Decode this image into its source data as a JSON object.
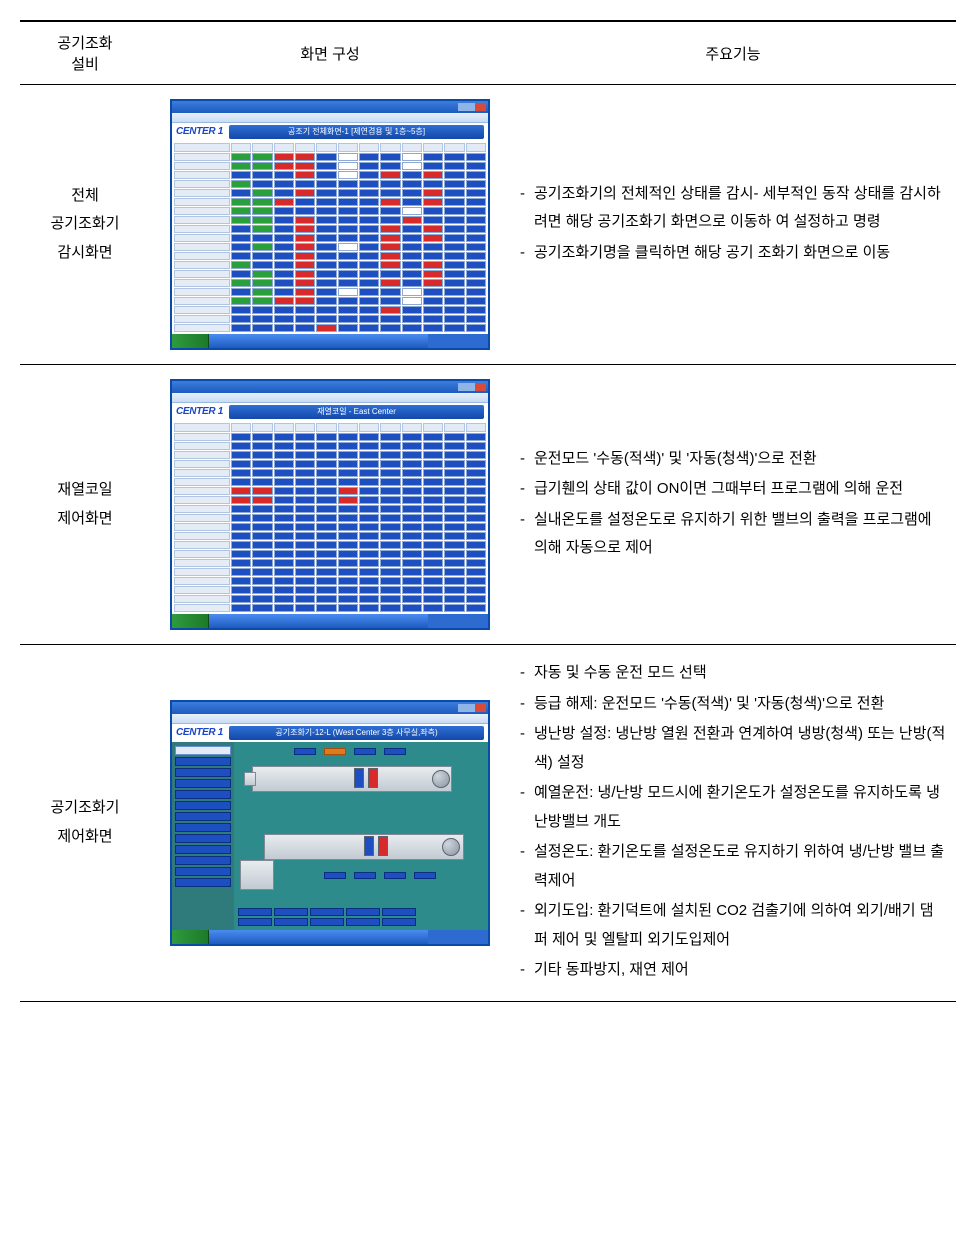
{
  "columns": {
    "c1": "공기조화\n설비",
    "c2": "화면 구성",
    "c3": "주요기능"
  },
  "rows": [
    {
      "label": "전체\n공기조화기\n감시화면",
      "features": [
        "공기조화기의 전체적인 상태를 감시- 세부적인 동작 상태를 감시하려면 해당 공기조화기 화면으로 이동하 여 설정하고 명령",
        "공기조화기명을 클릭하면 해당 공기 조화기 화면으로 이동"
      ],
      "thumb": {
        "brand": "CENTER 1",
        "title": "공조기 전체화면-1  [제연겸용 및 1층~5층]",
        "grid": {
          "rows": 20,
          "cols": 12,
          "pattern": [
            "GGRRBWBBWBBB",
            "GGRRBWBBWBBB",
            "BBBRBWBRBRBB",
            "GBBBBBBBBBBB",
            "BGBRBBBBBRBB",
            "GGRBBBBRBRBB",
            "GGBBBBBBWBBB",
            "GGBRBBBBRBBB",
            "BGBRBBBRBRBB",
            "BBBRBBBRBRBB",
            "BGBRBWBRBBBB",
            "BBBRBBBRBBBB",
            "GBBRBBBRBRBB",
            "BGBRBBBBBRBB",
            "GGBRBBBRBRBB",
            "BGBRBWBBWBBB",
            "GGRRBBBBWBBB",
            "BBBBBBBRBBBB",
            "BBBBBBBBBBBB",
            "BBBBRBBBBBBB"
          ]
        }
      }
    },
    {
      "label": "재열코일\n제어화면",
      "features": [
        "운전모드 '수동(적색)' 및 '자동(청색)'으로 전환",
        "급기휀의 상태 값이 ON이면 그때부터 프로그램에 의해 운전",
        "실내온도를 설정온도로 유지하기 위한 밸브의 출력을 프로그램에 의해 자동으로 제어"
      ],
      "thumb": {
        "brand": "CENTER 1",
        "title": "재열코일 - East Center",
        "grid": {
          "rows": 20,
          "cols": 12,
          "pattern": [
            "BBBBBBBBBBBB",
            "BBBBBBBBBBBB",
            "BBBBBBBBBBBB",
            "BBBBBBBBBBBB",
            "BBBBBBBBBBBB",
            "BBBBBBBBBBBB",
            "RRBBBRBBBBBB",
            "RRBBBRBBBBBB",
            "BBBBBBBBBBBB",
            "BBBBBBBBBBBB",
            "BBBBBBBBBBBB",
            "BBBBBBBBBBBB",
            "BBBBBBBBBBBB",
            "BBBBBBBBBBBB",
            "BBBBBBBBBBBB",
            "BBBBBBBBBBBB",
            "BBBBBBBBBBBB",
            "BBBBBBBBBBBB",
            "BBBBBBBBBBBB",
            "BBBBBBBBBBBB"
          ]
        }
      }
    },
    {
      "label": "공기조화기\n제어화면",
      "features": [
        "자동 및 수동 운전 모드 선택",
        "등급 해제: 운전모드 '수동(적색)' 및 '자동(청색)'으로 전환",
        "냉난방 설정: 냉난방 열원 전환과 연계하여 냉방(청색) 또는 난방(적색)  설정",
        "예열운전: 냉/난방 모드시에 환기온도가 설정온도를 유지하도록 냉난방밸브 개도",
        "설정온도: 환기온도를 설정온도로 유지하기 위하여 냉/난방 밸브 출력제어",
        "외기도입: 환기덕트에 설치된 CO2 검출기에 의하여 외기/배기 댐퍼 제어 및 엘탈피 외기도입제어",
        "기타 동파방지, 재연 제어"
      ],
      "thumb": {
        "brand": "CENTER 1",
        "title": "공기조화기-12-L  (West Center 3층 사무실,좌측)",
        "type": "diagram"
      }
    }
  ],
  "colors": {
    "blue": "#1e4fc0",
    "red": "#d82a2a",
    "green": "#2aa03a",
    "teal": "#2e8b8b",
    "panel_teal": "#2f7a7a",
    "orange": "#e07a1a"
  }
}
